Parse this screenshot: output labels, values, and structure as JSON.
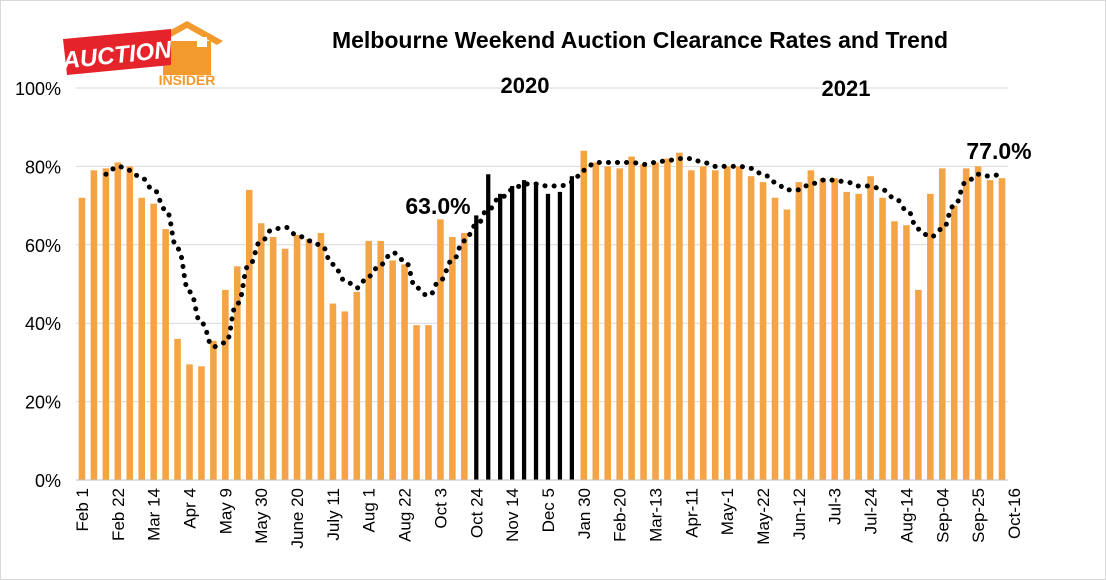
{
  "logo": {
    "text_main": "AUCTION",
    "text_sub": "INSIDER"
  },
  "chart_data": {
    "type": "bar",
    "title": "Melbourne Weekend Auction Clearance Rates and Trend",
    "year_labels": [
      "2020",
      "2021"
    ],
    "ylim": [
      0,
      100
    ],
    "y_ticks": [
      "0%",
      "20%",
      "40%",
      "60%",
      "80%",
      "100%"
    ],
    "x_tick_labels": [
      "Feb 1",
      "Feb 22",
      "Mar 14",
      "Apr 4",
      "May 9",
      "May 30",
      "June 20",
      "July 11",
      "Aug 1",
      "Aug 22",
      "Oct 3",
      "Oct 24",
      "Nov 14",
      "Dec 5",
      "Jan 30",
      "Feb-20",
      "Mar-13",
      "Apr-11",
      "May-1",
      "May-22",
      "Jun-12",
      "Jul-3",
      "Jul-24",
      "Aug-14",
      "Sep-04",
      "Sep-25",
      "Oct-16"
    ],
    "annotations": [
      {
        "text": "63.0%",
        "value": 63.0
      },
      {
        "text": "77.0%",
        "value": 77.0
      }
    ],
    "colors": {
      "bar": "#F4A445",
      "highlight_bar": "#000000",
      "trend": "#000000",
      "grid": "#d9d9d9"
    },
    "series": [
      {
        "type": "bar",
        "values": [
          72,
          79,
          79.5,
          81,
          80,
          72,
          70.5,
          64,
          36,
          29.5,
          29,
          35.5,
          48.5,
          54.5,
          74,
          65.5,
          62,
          59,
          62.5,
          61.5,
          63,
          45,
          43,
          48,
          61,
          61,
          56,
          55,
          39.5,
          39.5,
          66.5,
          62,
          63,
          67.5,
          78,
          73,
          75,
          76.5,
          76,
          73,
          73.5,
          77.5,
          84,
          81,
          80,
          79.5,
          82.5,
          80.5,
          81,
          82,
          83.5,
          79,
          80,
          79,
          80,
          80,
          77.5,
          76,
          72,
          69,
          76,
          79,
          77,
          77,
          73.5,
          73,
          77.5,
          72,
          66,
          65,
          48.5,
          73,
          79.5,
          70,
          79.5,
          80,
          76.5,
          77
        ]
      },
      {
        "type": "trend",
        "values": [
          null,
          null,
          78,
          80,
          79,
          77,
          74,
          69,
          59,
          48,
          40,
          34,
          35,
          45,
          55,
          61,
          64,
          64.5,
          62.5,
          61,
          60,
          55,
          51,
          49,
          52,
          55,
          58,
          56,
          49,
          47,
          51,
          56,
          61,
          65,
          69,
          72,
          74,
          75.5,
          75.5,
          75,
          75,
          76,
          79,
          81,
          81,
          81,
          81,
          80.5,
          81,
          81.5,
          82,
          82,
          81,
          80,
          80,
          80,
          79.5,
          78,
          76,
          74,
          74,
          75.5,
          76.5,
          76.5,
          76,
          75,
          75,
          74,
          72,
          69,
          64,
          62,
          64,
          70,
          76,
          78,
          77.5,
          78
        ]
      }
    ],
    "highlight_range": [
      33,
      41
    ]
  }
}
